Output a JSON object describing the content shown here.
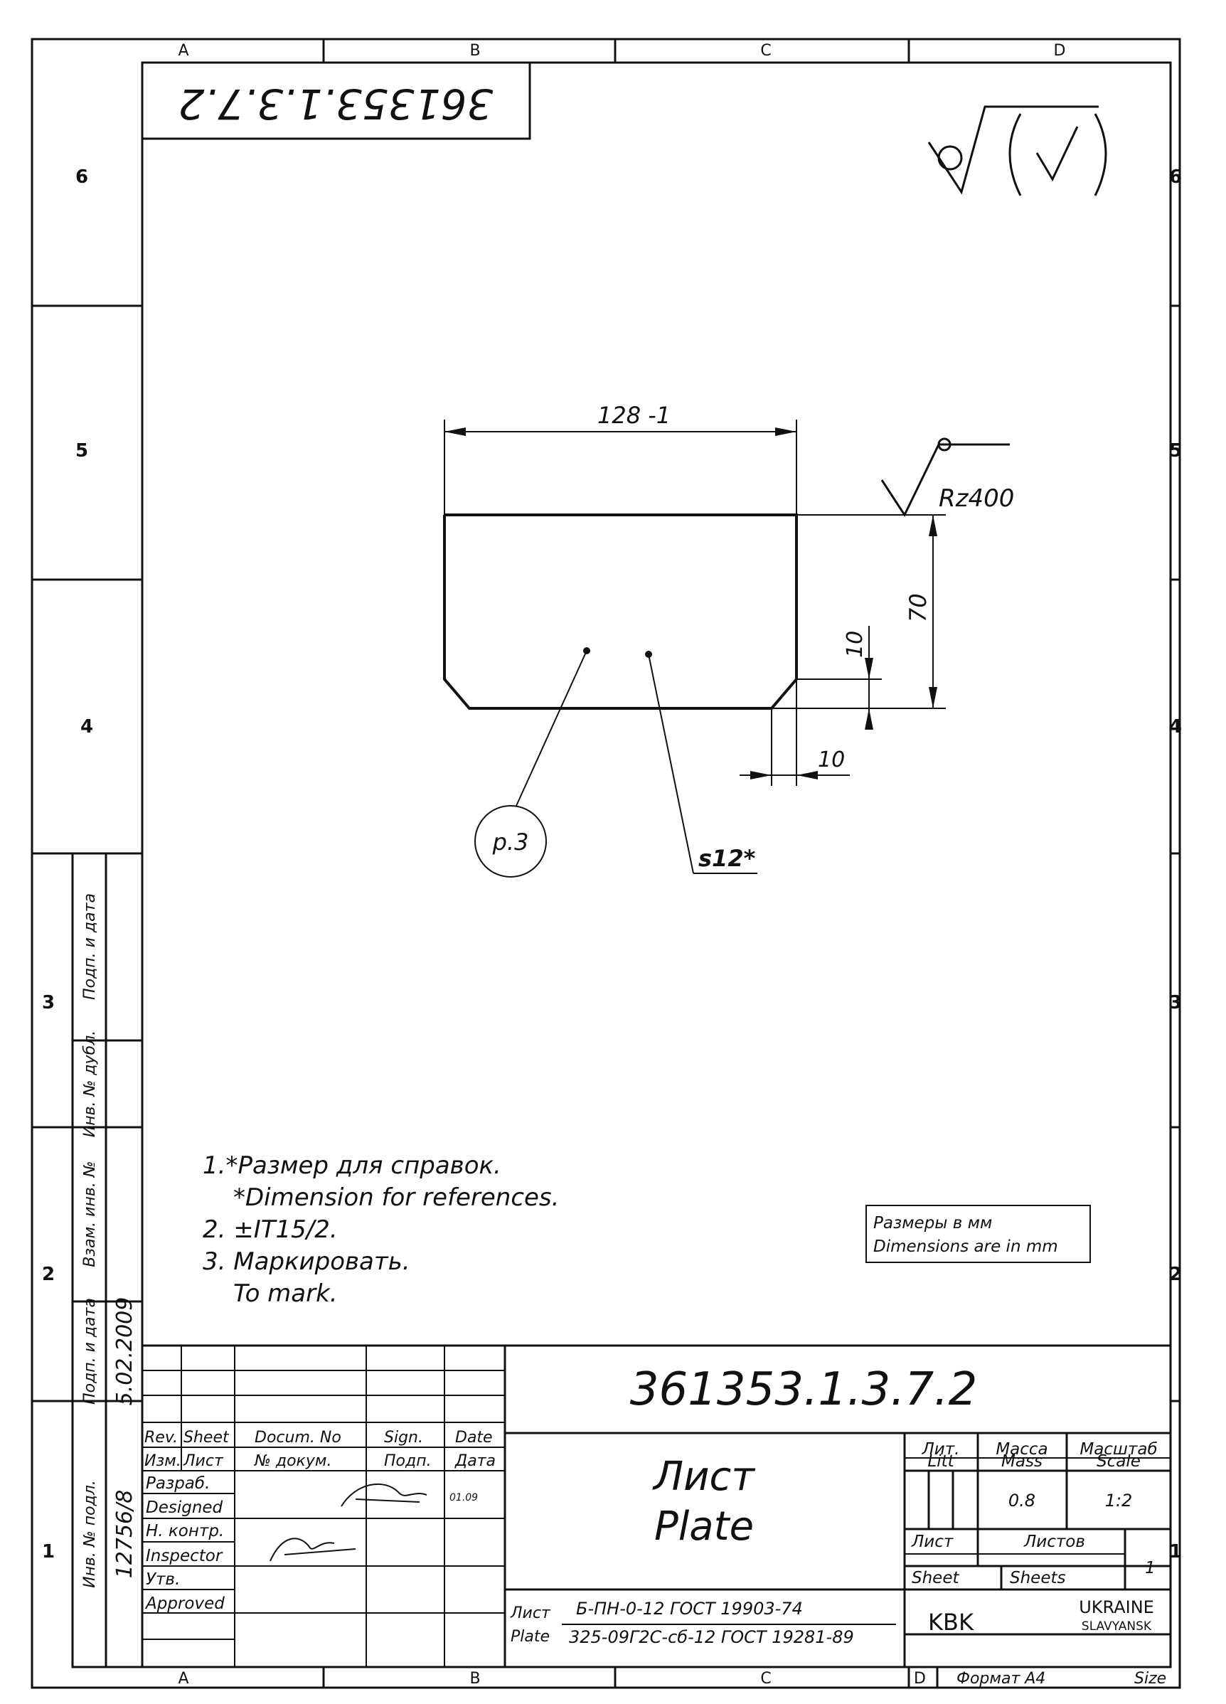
{
  "zones": {
    "columns": [
      "A",
      "B",
      "C",
      "D"
    ],
    "rows": [
      "6",
      "5",
      "4",
      "3",
      "2",
      "1"
    ]
  },
  "drawing_number_rotated": "361353.1.3.7.2",
  "part_view": {
    "width_dim": "128 -1",
    "height_dim": "70",
    "chamfer_v_dim": "10",
    "chamfer_h_dim": "10",
    "roughness": "Rz400",
    "item_balloon": "p.3",
    "thickness_note": "s12*"
  },
  "notes": [
    "1.*Размер для справок.",
    "*Dimension for references.",
    "2. ±IT15/2.",
    "3. Маркировать.",
    "To mark."
  ],
  "units_box": [
    "Размеры в мм",
    "Dimensions are in mm"
  ],
  "side_stamp": {
    "labels": [
      "Подп. и дата",
      "Инв. № дубл.",
      "Взам. инв. №",
      "Подп. и дата",
      "Инв. № подл."
    ],
    "values": [
      "",
      "",
      "",
      "5.02.2009",
      "12756/8"
    ]
  },
  "title_block": {
    "drawing_number": "361353.1.3.7.2",
    "rev_headers": [
      "Rev.",
      "Sheet",
      "Docum. No",
      "Sign.",
      "Date"
    ],
    "rev_headers_ru": [
      "Изм.",
      "Лист",
      "№ докум.",
      "Подп.",
      "Дата"
    ],
    "roles": [
      {
        "ru": "Разраб.",
        "en": "Designed",
        "date": "01.09"
      },
      {
        "ru": "Н. контр.",
        "en": "Inspector",
        "date": ""
      },
      {
        "ru": "Утв.",
        "en": "Approved",
        "date": ""
      }
    ],
    "title_ru": "Лист",
    "title_en": "Plate",
    "material_label_ru": "Лист",
    "material_label_en": "Plate",
    "material_line1": "Б-ПН-0-12 ГОСТ 19903-74",
    "material_line2": "325-09Г2С-сб-12 ГОСТ 19281-89",
    "lit_header_ru": "Лит.",
    "lit_header_en": "Litt",
    "mass_header_ru": "Масса",
    "mass_header_en": "Mass",
    "scale_header_ru": "Масштаб",
    "scale_header_en": "Scale",
    "mass_value": "0.8",
    "scale_value": "1:2",
    "sheet_label_ru": "Лист",
    "sheet_label_en": "Sheet",
    "sheets_label_ru": "Листов",
    "sheets_label_en": "Sheets",
    "sheets_value": "1",
    "company": "KBK",
    "country": "UKRAINE",
    "city": "SLAVYANSK"
  },
  "format_label_ru": "Формат А4",
  "format_label_en": "Size",
  "bottom_zone_d": "D"
}
